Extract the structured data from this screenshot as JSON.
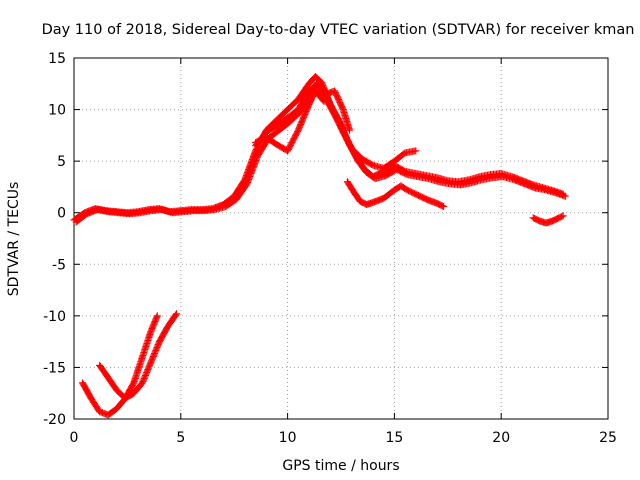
{
  "chart_data": {
    "type": "scatter",
    "title": "Day 110 of 2018, Sidereal Day-to-day VTEC variation (SDTVAR) for receiver kman",
    "xlabel": "GPS time / hours",
    "ylabel": "SDTVAR / TECUs",
    "xlim": [
      0,
      25
    ],
    "ylim": [
      -20,
      15
    ],
    "xticks": [
      0,
      5,
      10,
      15,
      20,
      25
    ],
    "xtick_labels": [
      "0",
      "5",
      "10",
      "15",
      "20",
      "25"
    ],
    "yticks": [
      -20,
      -15,
      -10,
      -5,
      0,
      5,
      10,
      15
    ],
    "ytick_labels": [
      "-20",
      "-15",
      "-10",
      "-5",
      "0",
      "5",
      "10",
      "15"
    ],
    "grid": true,
    "marker": "+",
    "color": "#ff0000",
    "series": [
      {
        "name": "main-track-a",
        "x": [
          0.0,
          0.5,
          1.0,
          1.5,
          2.0,
          2.5,
          3.0,
          3.5,
          4.0,
          4.5,
          5.0,
          5.5,
          6.0,
          6.5,
          7.0,
          7.5,
          8.0,
          8.5,
          9.0,
          9.5,
          10.0,
          10.5,
          11.0,
          11.3,
          11.6,
          12.0,
          12.4,
          12.8,
          13.2,
          13.6,
          14.0,
          14.5,
          15.0,
          15.5,
          16.0,
          16.5,
          17.0,
          17.5,
          18.0,
          18.5,
          19.0,
          19.5,
          20.0,
          20.5,
          21.0,
          21.5,
          22.0,
          22.5,
          22.9
        ],
        "y": [
          -0.7,
          0.0,
          0.4,
          0.2,
          0.1,
          0.0,
          0.1,
          0.3,
          0.4,
          0.1,
          0.2,
          0.3,
          0.3,
          0.4,
          0.8,
          1.6,
          3.2,
          6.0,
          8.0,
          9.0,
          10.0,
          11.0,
          12.5,
          13.2,
          12.6,
          10.5,
          9.0,
          7.0,
          5.5,
          4.2,
          3.5,
          4.0,
          4.6,
          4.0,
          3.8,
          3.6,
          3.4,
          3.1,
          3.0,
          3.2,
          3.5,
          3.7,
          3.8,
          3.5,
          3.1,
          2.7,
          2.4,
          2.1,
          1.8
        ]
      },
      {
        "name": "main-track-b",
        "x": [
          0.1,
          0.6,
          1.1,
          1.6,
          2.1,
          2.6,
          3.1,
          3.6,
          4.1,
          4.6,
          5.1,
          5.6,
          6.1,
          6.6,
          7.1,
          7.6,
          8.1,
          8.6,
          9.1,
          9.6,
          10.1,
          10.6,
          11.1,
          11.4,
          11.7,
          12.1,
          12.5,
          12.9,
          13.3,
          13.7,
          14.1,
          14.6,
          15.1,
          15.6,
          16.1,
          16.6,
          17.1,
          17.6,
          18.1,
          18.6,
          19.1,
          19.6,
          20.1,
          20.6,
          21.1,
          21.6,
          22.1,
          22.6,
          23.0
        ],
        "y": [
          -0.9,
          -0.1,
          0.3,
          0.1,
          0.0,
          -0.1,
          0.0,
          0.2,
          0.3,
          0.0,
          0.1,
          0.2,
          0.2,
          0.3,
          0.6,
          1.3,
          2.8,
          5.5,
          7.2,
          8.0,
          8.8,
          9.8,
          11.8,
          12.6,
          12.0,
          10.0,
          8.5,
          6.6,
          5.0,
          3.9,
          3.3,
          3.6,
          4.2,
          3.7,
          3.5,
          3.3,
          3.0,
          2.8,
          2.7,
          2.9,
          3.2,
          3.4,
          3.5,
          3.2,
          2.8,
          2.4,
          2.2,
          1.9,
          1.6
        ]
      },
      {
        "name": "main-track-c",
        "x": [
          8.5,
          9.0,
          9.5,
          10.0,
          10.5,
          11.0,
          11.4,
          11.8,
          12.2,
          12.6,
          13.0,
          13.5,
          14.0,
          14.5,
          15.0,
          15.5,
          16.0
        ],
        "y": [
          6.5,
          7.8,
          8.5,
          9.2,
          10.0,
          11.8,
          12.4,
          11.0,
          9.5,
          7.8,
          6.2,
          5.2,
          4.6,
          4.3,
          5.0,
          5.8,
          6.0
        ]
      },
      {
        "name": "secondary-arc-a",
        "x": [
          8.5,
          9.0,
          9.5,
          10.0,
          10.5,
          11.0,
          11.3,
          11.7
        ],
        "y": [
          6.8,
          7.3,
          6.6,
          6.0,
          8.0,
          10.5,
          11.8,
          10.8
        ]
      },
      {
        "name": "secondary-arc-b",
        "x": [
          11.8,
          12.2,
          12.6,
          12.9
        ],
        "y": [
          11.5,
          11.8,
          10.0,
          8.0
        ]
      },
      {
        "name": "mid-lower-track",
        "x": [
          12.8,
          13.1,
          13.4,
          13.7,
          14.0,
          14.5,
          15.0,
          15.3,
          15.6,
          16.0,
          16.5,
          17.0,
          17.3
        ],
        "y": [
          3.0,
          2.0,
          1.1,
          0.8,
          1.0,
          1.4,
          2.2,
          2.6,
          2.2,
          1.8,
          1.3,
          0.9,
          0.6
        ]
      },
      {
        "name": "late-stub",
        "x": [
          21.5,
          21.8,
          22.1,
          22.4,
          22.7,
          22.9
        ],
        "y": [
          -0.5,
          -0.8,
          -1.0,
          -0.8,
          -0.5,
          -0.3
        ]
      },
      {
        "name": "dip-track-a",
        "x": [
          0.4,
          0.8,
          1.2,
          1.6,
          2.0,
          2.4,
          2.8,
          3.2,
          3.6,
          4.0,
          4.4,
          4.8
        ],
        "y": [
          -16.5,
          -18.0,
          -19.3,
          -19.6,
          -19.0,
          -18.0,
          -17.5,
          -16.5,
          -14.5,
          -12.5,
          -11.0,
          -9.8
        ]
      },
      {
        "name": "dip-track-b",
        "x": [
          1.2,
          1.6,
          2.0,
          2.4,
          2.8,
          3.2,
          3.6,
          3.9
        ],
        "y": [
          -14.8,
          -16.0,
          -17.2,
          -18.0,
          -16.5,
          -14.0,
          -11.5,
          -10.0
        ]
      }
    ]
  }
}
